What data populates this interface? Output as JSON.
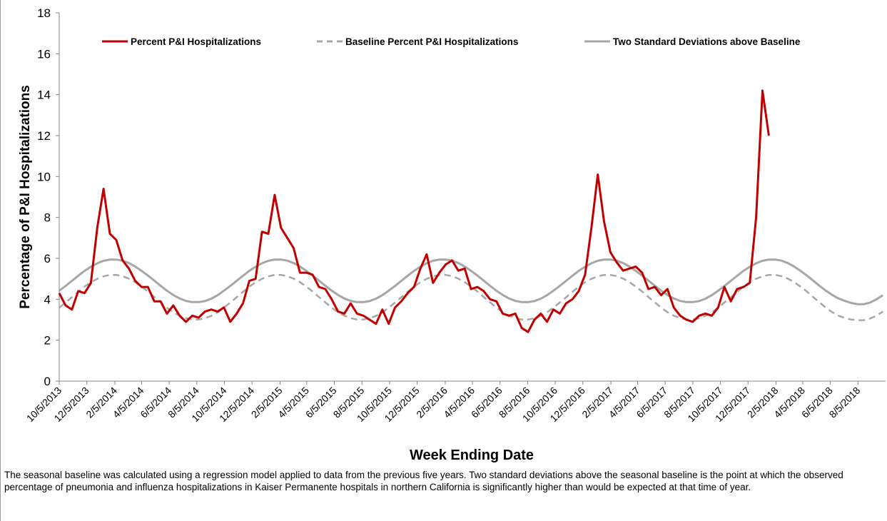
{
  "chart_data": {
    "type": "line",
    "ylabel": "Percentage of P&I Hospitalizations",
    "xlabel": "Week Ending Date",
    "note": "The seasonal baseline was calculated using a regression model applied to data from the previous five years. Two standard deviations above the seasonal baseline is the point at which the observed percentage of pneumonia and influenza hospitalizations in Kaiser Permanente hospitals in northern California is significantly higher than would be expected at that time of year.",
    "legend": "top",
    "grid": false,
    "ylim": [
      0,
      18
    ],
    "yticks": [
      0,
      2,
      4,
      6,
      8,
      10,
      12,
      14,
      16,
      18
    ],
    "xlim": [
      "10/5/2013",
      "10/5/2018"
    ],
    "xticks": [
      "10/5/2013",
      "12/5/2013",
      "2/5/2014",
      "4/5/2014",
      "6/5/2014",
      "8/5/2014",
      "10/5/2014",
      "12/5/2014",
      "2/5/2015",
      "4/5/2015",
      "6/5/2015",
      "8/5/2015",
      "10/5/2015",
      "12/5/2015",
      "2/5/2016",
      "4/5/2016",
      "6/5/2016",
      "8/5/2016",
      "10/5/2016",
      "12/5/2016",
      "2/5/2017",
      "4/5/2017",
      "6/5/2017",
      "8/5/2017",
      "10/5/2017",
      "12/5/2017",
      "2/5/2018",
      "4/5/2018",
      "6/5/2018",
      "8/5/2018"
    ],
    "x": [
      "10/5/2013",
      "10/19/2013",
      "11/2/2013",
      "11/16/2013",
      "11/30/2013",
      "12/14/2013",
      "12/28/2013",
      "1/11/2014",
      "1/25/2014",
      "2/8/2014",
      "2/22/2014",
      "3/8/2014",
      "3/22/2014",
      "4/5/2014",
      "4/19/2014",
      "5/3/2014",
      "5/17/2014",
      "5/31/2014",
      "6/14/2014",
      "6/28/2014",
      "7/12/2014",
      "7/26/2014",
      "8/9/2014",
      "8/23/2014",
      "9/6/2014",
      "9/20/2014",
      "10/4/2014",
      "10/18/2014",
      "11/1/2014",
      "11/15/2014",
      "11/29/2014",
      "12/13/2014",
      "12/27/2014",
      "1/10/2015",
      "1/24/2015",
      "2/7/2015",
      "2/21/2015",
      "3/7/2015",
      "3/21/2015",
      "4/4/2015",
      "4/18/2015",
      "5/2/2015",
      "5/16/2015",
      "5/30/2015",
      "6/13/2015",
      "6/27/2015",
      "7/11/2015",
      "7/25/2015",
      "8/8/2015",
      "8/22/2015",
      "9/5/2015",
      "9/19/2015",
      "10/3/2015",
      "10/17/2015",
      "10/31/2015",
      "11/14/2015",
      "11/28/2015",
      "12/12/2015",
      "12/26/2015",
      "1/9/2016",
      "1/23/2016",
      "2/6/2016",
      "2/20/2016",
      "3/5/2016",
      "3/19/2016",
      "4/2/2016",
      "4/16/2016",
      "4/30/2016",
      "5/14/2016",
      "5/28/2016",
      "6/11/2016",
      "6/25/2016",
      "7/9/2016",
      "7/23/2016",
      "8/6/2016",
      "8/20/2016",
      "9/3/2016",
      "9/17/2016",
      "10/1/2016",
      "10/15/2016",
      "10/29/2016",
      "11/12/2016",
      "11/26/2016",
      "12/10/2016",
      "12/24/2016",
      "1/7/2017",
      "1/21/2017",
      "2/4/2017",
      "2/18/2017",
      "3/4/2017",
      "3/18/2017",
      "4/1/2017",
      "4/15/2017",
      "4/29/2017",
      "5/13/2017",
      "5/27/2017",
      "6/10/2017",
      "6/24/2017",
      "7/8/2017",
      "7/22/2017",
      "8/5/2017",
      "8/19/2017",
      "9/2/2017",
      "9/16/2017",
      "9/30/2017",
      "10/14/2017",
      "10/28/2017",
      "11/11/2017",
      "11/25/2017",
      "12/9/2017",
      "12/23/2017",
      "1/6/2018",
      "1/20/2018",
      "2/3/2018",
      "2/17/2018",
      "3/3/2018",
      "3/17/2018",
      "3/31/2018",
      "4/14/2018",
      "4/28/2018",
      "5/12/2018",
      "5/26/2018",
      "6/9/2018",
      "6/23/2018",
      "7/7/2018",
      "7/21/2018",
      "8/4/2018",
      "8/18/2018",
      "9/1/2018",
      "9/15/2018",
      "9/29/2018"
    ],
    "series": [
      {
        "name": "Percent P&I Hospitalizations",
        "color": "#c00000",
        "style": "solid",
        "values": [
          4.3,
          3.7,
          3.5,
          4.4,
          4.3,
          4.8,
          7.5,
          9.4,
          7.2,
          6.9,
          5.9,
          5.5,
          4.9,
          4.6,
          4.6,
          3.9,
          3.9,
          3.3,
          3.7,
          3.2,
          2.9,
          3.2,
          3.1,
          3.4,
          3.5,
          3.4,
          3.6,
          2.9,
          3.3,
          3.8,
          4.9,
          5.0,
          7.3,
          7.2,
          9.1,
          7.5,
          7.0,
          6.5,
          5.3,
          5.3,
          5.2,
          4.6,
          4.5,
          4.0,
          3.4,
          3.3,
          3.8,
          3.3,
          3.2,
          3.0,
          2.8,
          3.5,
          2.8,
          3.6,
          3.9,
          4.3,
          4.6,
          5.5,
          6.2,
          4.8,
          5.3,
          5.7,
          5.9,
          5.4,
          5.5,
          4.5,
          4.6,
          4.4,
          4.0,
          3.9,
          3.3,
          3.2,
          3.3,
          2.6,
          2.4,
          3.0,
          3.3,
          2.9,
          3.5,
          3.3,
          3.8,
          4.0,
          4.4,
          5.2,
          7.5,
          10.1,
          7.8,
          6.3,
          5.8,
          5.4,
          5.5,
          5.6,
          5.3,
          4.5,
          4.6,
          4.2,
          4.5,
          3.6,
          3.2,
          3.0,
          2.9,
          3.2,
          3.3,
          3.2,
          3.6,
          4.6,
          3.9,
          4.5,
          4.6,
          4.8,
          8.0,
          14.2,
          12.0,
          null,
          null,
          null,
          null,
          null,
          null,
          null,
          null,
          null,
          null,
          null,
          null,
          null,
          null,
          null,
          null,
          null,
          null
        ]
      },
      {
        "name": "Baseline Percent P&I Hospitalizations",
        "color": "#a6a6a6",
        "style": "dashed",
        "values": [
          3.59,
          3.84,
          4.1,
          4.36,
          4.62,
          4.83,
          5.0,
          5.12,
          5.19,
          5.19,
          5.13,
          5.01,
          4.84,
          4.62,
          4.38,
          4.11,
          3.85,
          3.59,
          3.37,
          3.2,
          3.08,
          3.01,
          3.01,
          3.07,
          3.19,
          3.36,
          3.59,
          3.84,
          4.1,
          4.36,
          4.62,
          4.83,
          5.0,
          5.12,
          5.19,
          5.19,
          5.13,
          5.01,
          4.84,
          4.62,
          4.38,
          4.11,
          3.85,
          3.59,
          3.37,
          3.2,
          3.08,
          3.01,
          3.01,
          3.07,
          3.19,
          3.36,
          3.59,
          3.84,
          4.1,
          4.36,
          4.62,
          4.83,
          5.0,
          5.12,
          5.19,
          5.19,
          5.13,
          5.01,
          4.84,
          4.62,
          4.38,
          4.11,
          3.85,
          3.59,
          3.37,
          3.2,
          3.08,
          3.01,
          3.01,
          3.07,
          3.19,
          3.36,
          3.59,
          3.84,
          4.1,
          4.36,
          4.62,
          4.83,
          5.0,
          5.12,
          5.19,
          5.19,
          5.13,
          5.01,
          4.84,
          4.62,
          4.38,
          4.11,
          3.85,
          3.59,
          3.37,
          3.2,
          3.08,
          3.01,
          3.01,
          3.07,
          3.19,
          3.36,
          3.59,
          3.84,
          4.1,
          4.36,
          4.62,
          4.83,
          5.0,
          5.12,
          5.19,
          5.19,
          5.13,
          5.01,
          4.84,
          4.62,
          4.38,
          4.11,
          3.85,
          3.59,
          3.37,
          3.2,
          3.08,
          3.01,
          2.98,
          2.98,
          3.06,
          3.2,
          3.4
        ]
      },
      {
        "name": "Two Standard Deviations above Baseline",
        "color": "#a6a6a6",
        "style": "solid",
        "values": [
          4.42,
          4.65,
          4.9,
          5.15,
          5.39,
          5.59,
          5.76,
          5.88,
          5.94,
          5.94,
          5.89,
          5.77,
          5.6,
          5.39,
          5.16,
          4.91,
          4.66,
          4.42,
          4.21,
          4.04,
          3.92,
          3.86,
          3.86,
          3.91,
          4.03,
          4.2,
          4.42,
          4.65,
          4.9,
          5.15,
          5.39,
          5.59,
          5.76,
          5.88,
          5.94,
          5.94,
          5.89,
          5.77,
          5.6,
          5.39,
          5.16,
          4.91,
          4.66,
          4.42,
          4.21,
          4.04,
          3.92,
          3.86,
          3.86,
          3.91,
          4.03,
          4.2,
          4.42,
          4.65,
          4.9,
          5.15,
          5.39,
          5.59,
          5.76,
          5.88,
          5.94,
          5.94,
          5.89,
          5.77,
          5.6,
          5.39,
          5.16,
          4.91,
          4.66,
          4.42,
          4.21,
          4.04,
          3.92,
          3.86,
          3.86,
          3.91,
          4.03,
          4.2,
          4.42,
          4.65,
          4.9,
          5.15,
          5.39,
          5.59,
          5.76,
          5.88,
          5.94,
          5.94,
          5.89,
          5.77,
          5.6,
          5.39,
          5.16,
          4.91,
          4.66,
          4.42,
          4.21,
          4.04,
          3.92,
          3.86,
          3.86,
          3.91,
          4.03,
          4.2,
          4.42,
          4.65,
          4.9,
          5.15,
          5.39,
          5.59,
          5.76,
          5.88,
          5.94,
          5.94,
          5.89,
          5.77,
          5.6,
          5.39,
          5.16,
          4.91,
          4.66,
          4.42,
          4.21,
          4.04,
          3.92,
          3.82,
          3.76,
          3.76,
          3.84,
          4.0,
          4.2
        ]
      }
    ]
  }
}
